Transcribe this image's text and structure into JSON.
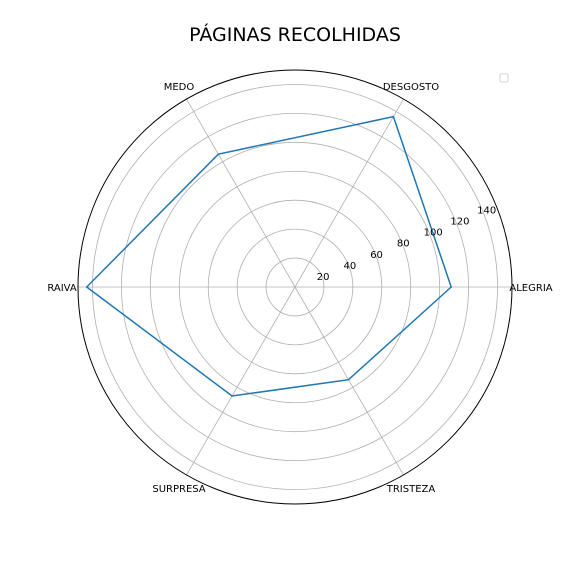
{
  "chart_data": {
    "type": "radar",
    "title": "PÁGINAS RECOLHIDAS",
    "categories": [
      "ALEGRIA",
      "DESGOSTO",
      "MEDO",
      "RAIVA",
      "SURPRESA",
      "TRISTEZA"
    ],
    "series": [
      {
        "values": [
          108,
          136,
          106,
          144,
          87,
          74
        ],
        "color": "#1f77b4"
      }
    ],
    "r_ticks": [
      20,
      40,
      60,
      80,
      100,
      120,
      140
    ],
    "r_max": 150,
    "grid": true,
    "legend": "top-right"
  }
}
